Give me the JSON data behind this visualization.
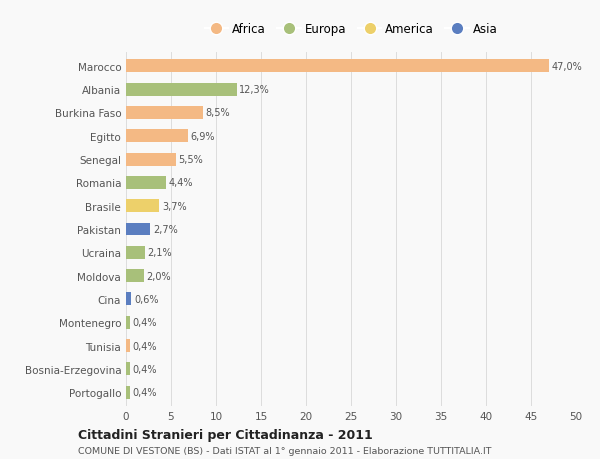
{
  "categories": [
    "Marocco",
    "Albania",
    "Burkina Faso",
    "Egitto",
    "Senegal",
    "Romania",
    "Brasile",
    "Pakistan",
    "Ucraina",
    "Moldova",
    "Cina",
    "Montenegro",
    "Tunisia",
    "Bosnia-Erzegovina",
    "Portogallo"
  ],
  "values": [
    47.0,
    12.3,
    8.5,
    6.9,
    5.5,
    4.4,
    3.7,
    2.7,
    2.1,
    2.0,
    0.6,
    0.4,
    0.4,
    0.4,
    0.4
  ],
  "labels": [
    "47,0%",
    "12,3%",
    "8,5%",
    "6,9%",
    "5,5%",
    "4,4%",
    "3,7%",
    "2,7%",
    "2,1%",
    "2,0%",
    "0,6%",
    "0,4%",
    "0,4%",
    "0,4%",
    "0,4%"
  ],
  "colors": [
    "#F4B984",
    "#A8C07A",
    "#F4B984",
    "#F4B984",
    "#F4B984",
    "#A8C07A",
    "#EDD06A",
    "#5B7EC0",
    "#A8C07A",
    "#A8C07A",
    "#5B7EC0",
    "#A8C07A",
    "#F4B984",
    "#A8C07A",
    "#A8C07A"
  ],
  "legend": [
    {
      "label": "Africa",
      "color": "#F4B984"
    },
    {
      "label": "Europa",
      "color": "#A8C07A"
    },
    {
      "label": "America",
      "color": "#EDD06A"
    },
    {
      "label": "Asia",
      "color": "#5B7EC0"
    }
  ],
  "xlim": [
    0,
    50
  ],
  "xticks": [
    0,
    5,
    10,
    15,
    20,
    25,
    30,
    35,
    40,
    45,
    50
  ],
  "title": "Cittadini Stranieri per Cittadinanza - 2011",
  "subtitle": "COMUNE DI VESTONE (BS) - Dati ISTAT al 1° gennaio 2011 - Elaborazione TUTTITALIA.IT",
  "bg_color": "#f9f9f9",
  "bar_height": 0.55
}
